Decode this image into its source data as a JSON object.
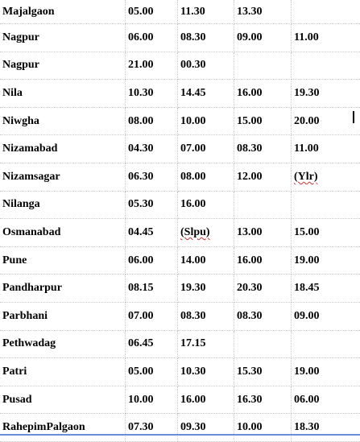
{
  "rows": [
    {
      "place": "Majalgaon",
      "times": [
        "05.00",
        "11.30",
        "13.30",
        ""
      ]
    },
    {
      "place": "Nagpur",
      "times": [
        "06.00",
        "08.30",
        "09.00",
        "11.00"
      ]
    },
    {
      "place": "Nagpur",
      "times": [
        "21.00",
        "00.30",
        "",
        ""
      ]
    },
    {
      "place": "Nila",
      "times": [
        "10.30",
        "14.45",
        "16.00",
        "19.30"
      ]
    },
    {
      "place": "Niwgha",
      "times": [
        "08.00",
        "10.00",
        "15.00",
        "20.00"
      ]
    },
    {
      "place": "Nizamabad",
      "times": [
        "04.30",
        "07.00",
        "08.30",
        "11.00"
      ]
    },
    {
      "place": "Nizamsagar",
      "times": [
        "06.30",
        "08.00",
        "12.00",
        "(Ylr)"
      ]
    },
    {
      "place": "Nilanga",
      "times": [
        "05.30",
        "16.00",
        "",
        ""
      ]
    },
    {
      "place": "Osmanabad",
      "times": [
        "04.45",
        "(Slpu)",
        "13.00",
        "15.00"
      ]
    },
    {
      "place": "Pune",
      "times": [
        "06.00",
        "14.00",
        "16.00",
        "19.00"
      ]
    },
    {
      "place": "Pandharpur",
      "times": [
        "08.15",
        "19.30",
        "20.30",
        "18.45"
      ]
    },
    {
      "place": "Parbhani",
      "times": [
        "07.00",
        "08.30",
        "08.30",
        "09.00"
      ]
    },
    {
      "place": "Pethwadag",
      "times": [
        "06.45",
        "17.15",
        "",
        ""
      ]
    },
    {
      "place": "Patri",
      "times": [
        "05.00",
        "10.30",
        "15.30",
        "19.00"
      ]
    },
    {
      "place": "Pusad",
      "times": [
        "10.00",
        "16.00",
        "16.30",
        "06.00"
      ]
    },
    {
      "place": "RahepimPalgaon",
      "times": [
        "07.30",
        "09.30",
        "10.00",
        "18.30"
      ]
    }
  ],
  "spellcheck_flagged": [
    "(Ylr)",
    "(Slpu)"
  ]
}
